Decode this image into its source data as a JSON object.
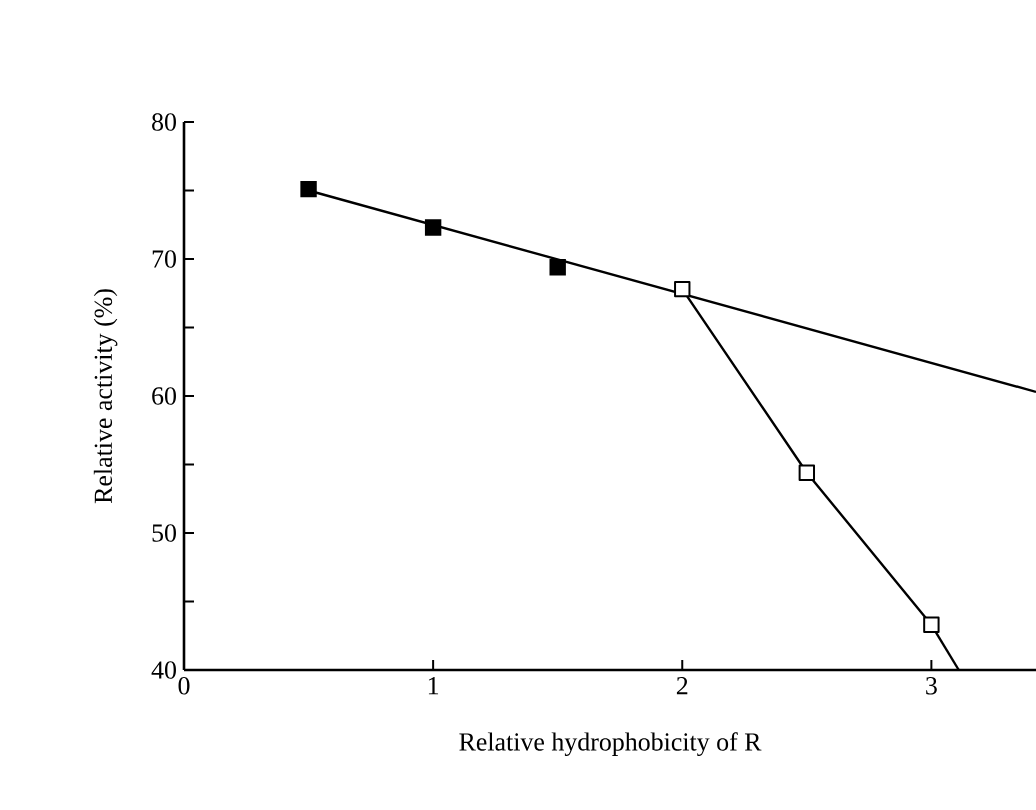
{
  "chart_data": {
    "type": "scatter",
    "xlabel": "Relative hydrophobicity of R",
    "ylabel": "Relative activity (%)",
    "xlim": [
      0,
      3.42
    ],
    "ylim": [
      40,
      80
    ],
    "xticks": [
      0,
      1,
      2,
      3
    ],
    "yticks": [
      40,
      {
        "value": 45,
        "label": null
      },
      50,
      {
        "value": 55,
        "label": null
      },
      60,
      {
        "value": 65,
        "label": null
      },
      70,
      {
        "value": 75,
        "label": null
      },
      80
    ],
    "grid": false,
    "marker": "square",
    "series": [
      {
        "type": "line",
        "color": "#000000",
        "marker": "none",
        "x": [
          0.5,
          3.42
        ],
        "values": [
          75,
          60.3
        ]
      },
      {
        "type": "line",
        "color": "#000000",
        "marker": "square",
        "x": [
          2,
          2.5,
          3
        ],
        "values": [
          67.8,
          54.4,
          43.3
        ]
      },
      {
        "type": "line",
        "color": "#000000",
        "marker": "none",
        "x": [
          3,
          3.11
        ],
        "values": [
          43.3,
          40
        ]
      },
      {
        "color": "#000000",
        "x": [
          0.5,
          1,
          1.5
        ],
        "values": [
          75.1,
          72.3,
          69.4
        ]
      }
    ]
  }
}
